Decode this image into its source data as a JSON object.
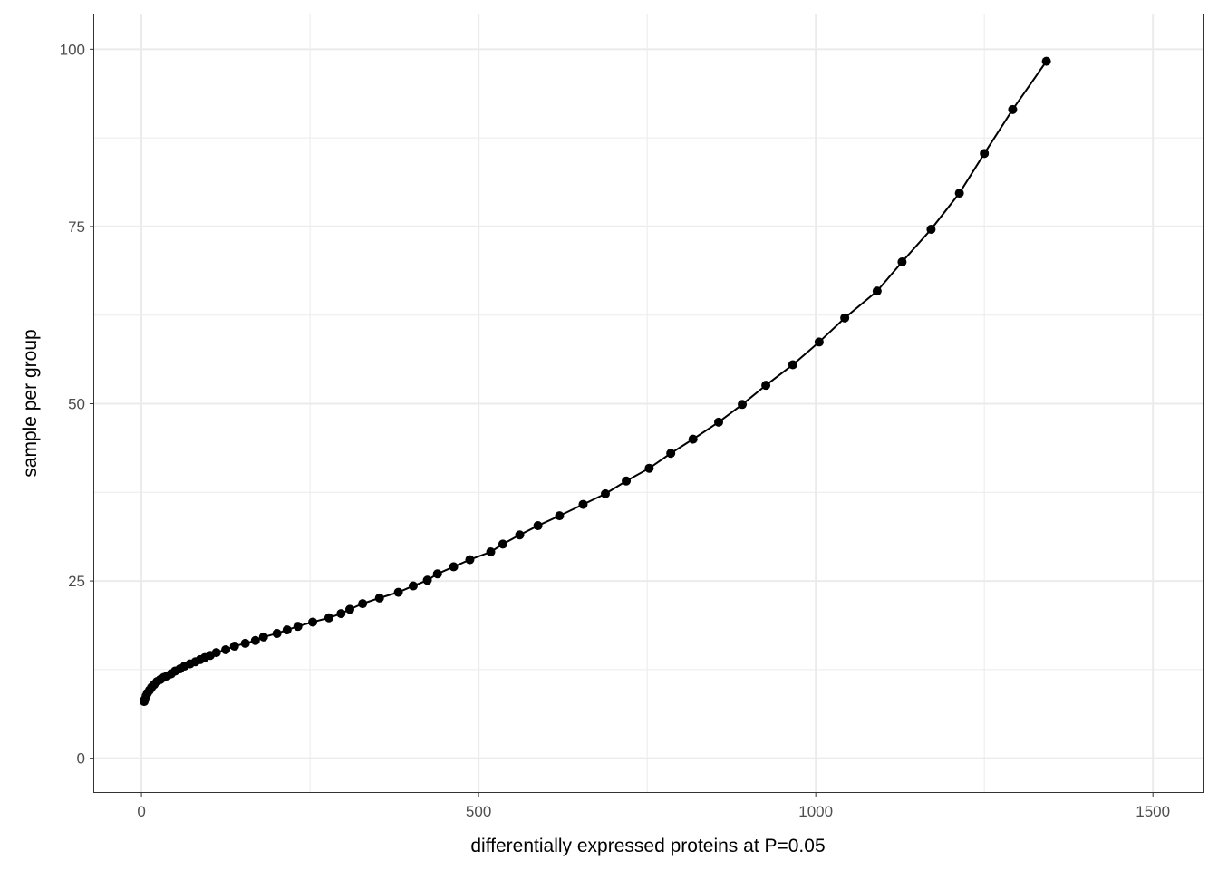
{
  "chart_data": {
    "type": "line",
    "title": "",
    "xlabel": "differentially expressed proteins at P=0.05",
    "ylabel": "sample per group",
    "xlim": [
      -70,
      1575
    ],
    "ylim": [
      -4.9,
      104.9
    ],
    "xticks": [
      0,
      500,
      1000,
      1500
    ],
    "xtick_labels": [
      "0",
      "500",
      "1000",
      "1500"
    ],
    "yticks": [
      0,
      25,
      50,
      75,
      100
    ],
    "ytick_labels": [
      "0",
      "25",
      "50",
      "75",
      "100"
    ],
    "grid": true,
    "markers": true,
    "series": [
      {
        "name": "samples",
        "x": [
          4,
          5,
          7,
          9,
          12,
          15,
          19,
          23,
          28,
          33,
          38,
          44,
          50,
          57,
          64,
          72,
          80,
          87,
          94,
          102,
          111,
          125,
          138,
          154,
          169,
          181,
          201,
          216,
          232,
          254,
          278,
          296,
          309,
          328,
          353,
          381,
          403,
          424,
          439,
          463,
          487,
          518,
          536,
          561,
          588,
          620,
          655,
          688,
          719,
          753,
          785,
          818,
          856,
          891,
          926,
          966,
          1005,
          1043,
          1091,
          1128,
          1171,
          1213,
          1250,
          1292,
          1342
        ],
        "y": [
          8.0,
          8.3,
          8.8,
          9.2,
          9.6,
          10.0,
          10.4,
          10.8,
          11.1,
          11.4,
          11.6,
          11.9,
          12.3,
          12.6,
          13.0,
          13.3,
          13.6,
          13.9,
          14.2,
          14.5,
          14.9,
          15.3,
          15.8,
          16.2,
          16.6,
          17.1,
          17.6,
          18.1,
          18.6,
          19.2,
          19.8,
          20.4,
          21.0,
          21.8,
          22.6,
          23.4,
          24.3,
          25.1,
          26.0,
          27.0,
          28.0,
          29.1,
          30.2,
          31.5,
          32.8,
          34.2,
          35.8,
          37.3,
          39.1,
          40.9,
          43.0,
          45.0,
          47.4,
          49.9,
          52.6,
          55.5,
          58.7,
          62.1,
          65.9,
          70.0,
          74.6,
          79.7,
          85.3,
          91.5,
          98.3
        ]
      }
    ],
    "colors": {
      "line": "#000000",
      "grid": "#ebebeb",
      "panel_border": "#333333"
    }
  }
}
